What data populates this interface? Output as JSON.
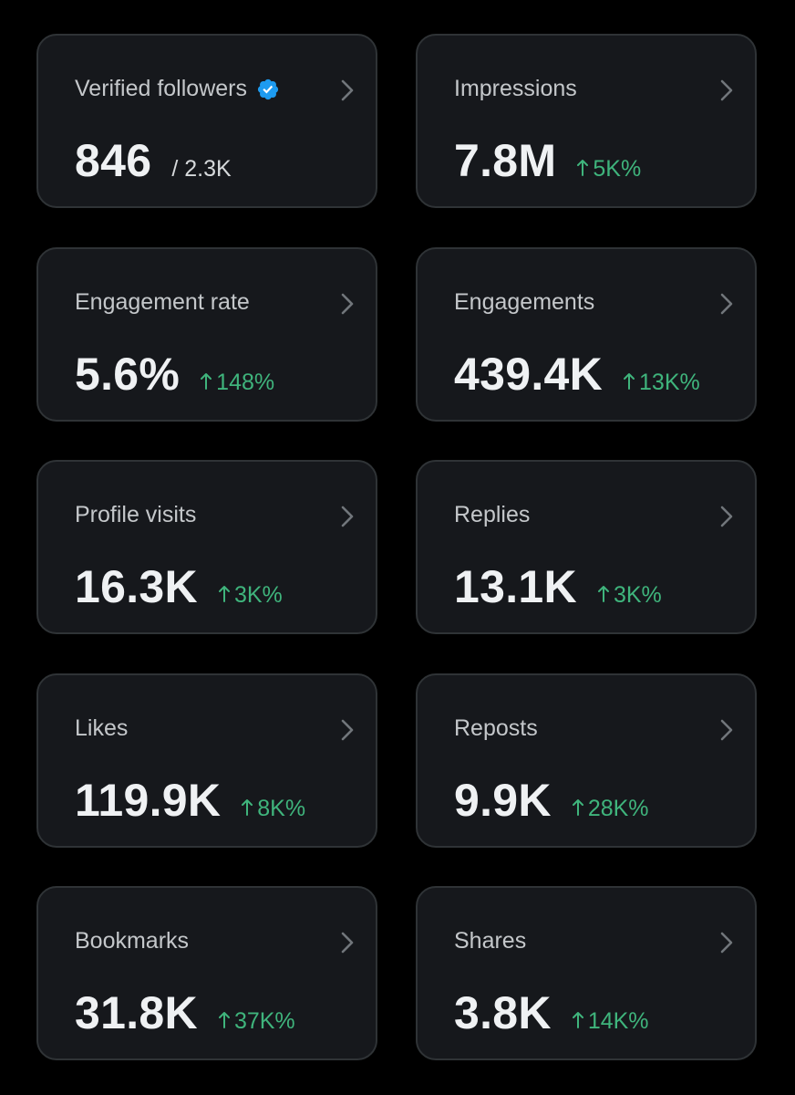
{
  "accent_colors": {
    "background": "#000000",
    "card": "#16181c",
    "card_border": "#2f3336",
    "positive": "#3fb47c",
    "verified": "#1d9bf0"
  },
  "cards": [
    {
      "title": "Verified followers",
      "value": "846",
      "total": "/ 2.3K",
      "icon": "verified-badge-icon"
    },
    {
      "title": "Impressions",
      "value": "7.8M",
      "change": "5K%",
      "direction": "up"
    },
    {
      "title": "Engagement rate",
      "value": "5.6%",
      "change": "148%",
      "direction": "up"
    },
    {
      "title": "Engagements",
      "value": "439.4K",
      "change": "13K%",
      "direction": "up"
    },
    {
      "title": "Profile visits",
      "value": "16.3K",
      "change": "3K%",
      "direction": "up"
    },
    {
      "title": "Replies",
      "value": "13.1K",
      "change": "3K%",
      "direction": "up"
    },
    {
      "title": "Likes",
      "value": "119.9K",
      "change": "8K%",
      "direction": "up"
    },
    {
      "title": "Reposts",
      "value": "9.9K",
      "change": "28K%",
      "direction": "up"
    },
    {
      "title": "Bookmarks",
      "value": "31.8K",
      "change": "37K%",
      "direction": "up"
    },
    {
      "title": "Shares",
      "value": "3.8K",
      "change": "14K%",
      "direction": "up"
    }
  ]
}
